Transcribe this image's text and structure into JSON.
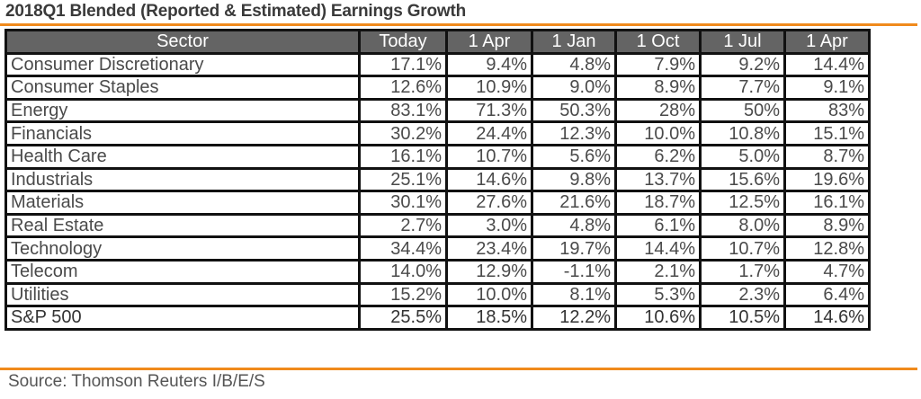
{
  "title": "2018Q1 Blended (Reported & Estimated) Earnings Growth",
  "source": "Source: Thomson Reuters I/B/E/S",
  "colors": {
    "accent": "#f08a1c",
    "header_bg": "#646464",
    "border": "#111111"
  },
  "chart_data": {
    "type": "table",
    "title": "2018Q1 Blended (Reported & Estimated) Earnings Growth",
    "columns": [
      "Sector",
      "Today",
      "1 Apr",
      "1 Jan",
      "1 Oct",
      "1 Jul",
      "1 Apr"
    ],
    "rows": [
      [
        "Consumer Discretionary",
        "17.1%",
        "9.4%",
        "4.8%",
        "7.9%",
        "9.2%",
        "14.4%"
      ],
      [
        "Consumer Staples",
        "12.6%",
        "10.9%",
        "9.0%",
        "8.9%",
        "7.7%",
        "9.1%"
      ],
      [
        "Energy",
        "83.1%",
        "71.3%",
        "50.3%",
        "28%",
        "50%",
        "83%"
      ],
      [
        "Financials",
        "30.2%",
        "24.4%",
        "12.3%",
        "10.0%",
        "10.8%",
        "15.1%"
      ],
      [
        "Health Care",
        "16.1%",
        "10.7%",
        "5.6%",
        "6.2%",
        "5.0%",
        "8.7%"
      ],
      [
        "Industrials",
        "25.1%",
        "14.6%",
        "9.8%",
        "13.7%",
        "15.6%",
        "19.6%"
      ],
      [
        "Materials",
        "30.1%",
        "27.6%",
        "21.6%",
        "18.7%",
        "12.5%",
        "16.1%"
      ],
      [
        "Real Estate",
        "2.7%",
        "3.0%",
        "4.8%",
        "6.1%",
        "8.0%",
        "8.9%"
      ],
      [
        "Technology",
        "34.4%",
        "23.4%",
        "19.7%",
        "14.4%",
        "10.7%",
        "12.8%"
      ],
      [
        "Telecom",
        "14.0%",
        "12.9%",
        "-1.1%",
        "2.1%",
        "1.7%",
        "4.7%"
      ],
      [
        "Utilities",
        "15.2%",
        "10.0%",
        "8.1%",
        "5.3%",
        "2.3%",
        "6.4%"
      ],
      [
        "S&P 500",
        "25.5%",
        "18.5%",
        "12.2%",
        "10.6%",
        "10.5%",
        "14.6%"
      ]
    ]
  }
}
